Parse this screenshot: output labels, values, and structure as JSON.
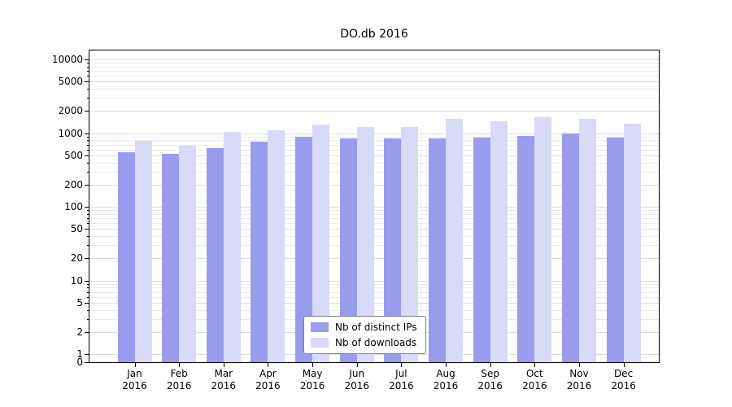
{
  "chart_data": {
    "type": "bar",
    "title": "DO.db 2016",
    "categories": [
      "Jan",
      "Feb",
      "Mar",
      "Apr",
      "May",
      "Jun",
      "Jul",
      "Aug",
      "Sep",
      "Oct",
      "Nov",
      "Dec"
    ],
    "year_label": "2016",
    "series": [
      {
        "name": "Nb of distinct IPs",
        "color": "#9b9bee",
        "values": [
          550,
          520,
          620,
          770,
          900,
          850,
          850,
          850,
          880,
          920,
          1000,
          880
        ]
      },
      {
        "name": "Nb of downloads",
        "color": "#d9d9f8",
        "values": [
          780,
          680,
          1050,
          1100,
          1300,
          1200,
          1200,
          1550,
          1450,
          1650,
          1550,
          1350
        ]
      }
    ],
    "yscale": "symlog",
    "yticks": [
      0,
      1,
      2,
      5,
      10,
      20,
      50,
      100,
      200,
      500,
      1000,
      2000,
      5000,
      10000
    ],
    "ylim": [
      0,
      13000
    ],
    "xlabel": "",
    "ylabel": "",
    "grid": true,
    "legend_position": "lower center"
  },
  "colors": {
    "grid_minor": "#ebebeb",
    "grid_major": "#dcdcdc",
    "axis": "#000000",
    "background": "#ffffff"
  }
}
